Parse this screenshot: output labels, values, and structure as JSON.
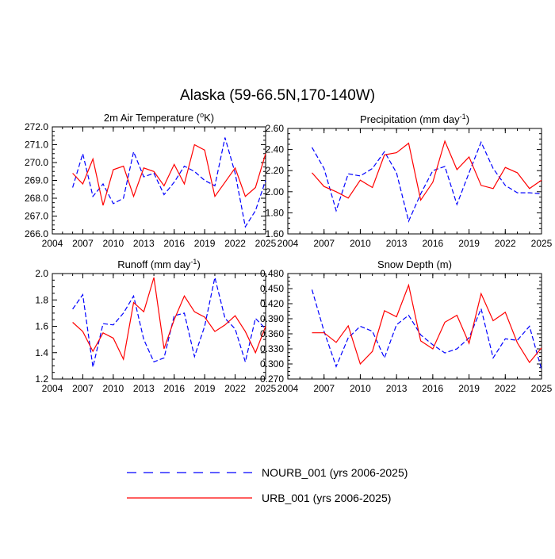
{
  "title": "Alaska (59-66.5N,170-140W)",
  "colors": {
    "nourb": "#0000ff",
    "urb": "#ff0000",
    "axis": "#000000"
  },
  "legend": [
    {
      "key": "nourb",
      "label": "NOURB_001 (yrs 2006-2025)",
      "style": "dashed"
    },
    {
      "key": "urb",
      "label": "URB_001 (yrs 2006-2025)",
      "style": "solid"
    }
  ],
  "chart_data": [
    {
      "id": "temp",
      "type": "line",
      "title": "2m Air Temperature (°K)",
      "title_main": "2m Air Temperature (",
      "title_sup": "o",
      "title_tail": "K)",
      "xlim": [
        2004,
        2025
      ],
      "xticks": [
        "2004",
        "2007",
        "2010",
        "2013",
        "2016",
        "2019",
        "2022",
        "2025"
      ],
      "ylim": [
        266,
        272
      ],
      "yticks": [
        "266.0",
        "267.0",
        "268.0",
        "269.0",
        "270.0",
        "271.0",
        "272.0"
      ],
      "x": [
        2006,
        2007,
        2008,
        2009,
        2010,
        2011,
        2012,
        2013,
        2014,
        2015,
        2016,
        2017,
        2018,
        2019,
        2020,
        2021,
        2022,
        2023,
        2024,
        2025
      ],
      "series": [
        {
          "name": "NOURB_001",
          "key": "nourb",
          "values": [
            268.6,
            270.5,
            268.1,
            268.8,
            267.7,
            268.0,
            270.6,
            269.2,
            269.4,
            268.2,
            268.9,
            269.8,
            269.5,
            269.0,
            268.7,
            271.4,
            269.4,
            266.4,
            267.3,
            269.0
          ]
        },
        {
          "name": "URB_001",
          "key": "urb",
          "values": [
            269.4,
            268.8,
            270.2,
            267.6,
            269.6,
            269.8,
            268.1,
            269.7,
            269.5,
            268.7,
            269.9,
            268.8,
            271.0,
            270.7,
            268.1,
            268.9,
            269.7,
            268.1,
            268.6,
            270.5
          ]
        }
      ]
    },
    {
      "id": "precip",
      "type": "line",
      "title": "Precipitation (mm day-1)",
      "title_main": "Precipitation (mm day",
      "title_sup": "-1",
      "title_tail": ")",
      "xlim": [
        2004,
        2025
      ],
      "xticks": [
        "2004",
        "2007",
        "2010",
        "2013",
        "2016",
        "2019",
        "2022",
        "2025"
      ],
      "ylim": [
        1.6,
        2.6
      ],
      "yticks": [
        "1.60",
        "1.80",
        "2.00",
        "2.20",
        "2.40",
        "2.60"
      ],
      "x": [
        2006,
        2007,
        2008,
        2009,
        2010,
        2011,
        2012,
        2013,
        2014,
        2015,
        2016,
        2017,
        2018,
        2019,
        2020,
        2021,
        2022,
        2023,
        2024,
        2025
      ],
      "series": [
        {
          "name": "NOURB_001",
          "key": "nourb",
          "values": [
            2.42,
            2.22,
            1.82,
            2.17,
            2.15,
            2.22,
            2.38,
            2.18,
            1.72,
            1.98,
            2.2,
            2.24,
            1.88,
            2.18,
            2.47,
            2.22,
            2.06,
            1.99,
            1.99,
            1.98
          ]
        },
        {
          "name": "URB_001",
          "key": "urb",
          "values": [
            2.18,
            2.05,
            2.0,
            1.94,
            2.11,
            2.04,
            2.35,
            2.37,
            2.46,
            1.92,
            2.09,
            2.48,
            2.21,
            2.33,
            2.06,
            2.03,
            2.23,
            2.18,
            2.03,
            2.11
          ]
        }
      ]
    },
    {
      "id": "runoff",
      "type": "line",
      "title": "Runoff (mm day-1)",
      "title_main": "Runoff (mm day",
      "title_sup": "-1",
      "title_tail": ")",
      "xlim": [
        2004,
        2025
      ],
      "xticks": [
        "2004",
        "2007",
        "2010",
        "2013",
        "2016",
        "2019",
        "2022",
        "2025"
      ],
      "ylim": [
        1.2,
        2.0
      ],
      "yticks": [
        "1.2",
        "1.4",
        "1.6",
        "1.8",
        "2.0"
      ],
      "x": [
        2006,
        2007,
        2008,
        2009,
        2010,
        2011,
        2012,
        2013,
        2014,
        2015,
        2016,
        2017,
        2018,
        2019,
        2020,
        2021,
        2022,
        2023,
        2024,
        2025
      ],
      "series": [
        {
          "name": "NOURB_001",
          "key": "nourb",
          "values": [
            1.73,
            1.84,
            1.29,
            1.62,
            1.61,
            1.7,
            1.83,
            1.5,
            1.33,
            1.36,
            1.68,
            1.7,
            1.37,
            1.6,
            1.97,
            1.66,
            1.58,
            1.33,
            1.66,
            1.58
          ]
        },
        {
          "name": "URB_001",
          "key": "urb",
          "values": [
            1.63,
            1.56,
            1.41,
            1.55,
            1.51,
            1.35,
            1.78,
            1.71,
            1.97,
            1.43,
            1.65,
            1.83,
            1.71,
            1.67,
            1.56,
            1.61,
            1.68,
            1.56,
            1.4,
            1.6
          ]
        }
      ]
    },
    {
      "id": "snow",
      "type": "line",
      "title": "Snow Depth (m)",
      "title_main": "Snow Depth (m)",
      "title_sup": "",
      "title_tail": "",
      "xlim": [
        2004,
        2025
      ],
      "xticks": [
        "2004",
        "2007",
        "2010",
        "2013",
        "2016",
        "2019",
        "2022",
        "2025"
      ],
      "ylim": [
        0.27,
        0.48
      ],
      "yticks": [
        "0.270",
        "0.300",
        "0.330",
        "0.360",
        "0.390",
        "0.420",
        "0.450",
        "0.480"
      ],
      "x": [
        2006,
        2007,
        2008,
        2009,
        2010,
        2011,
        2012,
        2013,
        2014,
        2015,
        2016,
        2017,
        2018,
        2019,
        2020,
        2021,
        2022,
        2023,
        2024,
        2025
      ],
      "series": [
        {
          "name": "NOURB_001",
          "key": "nourb",
          "values": [
            0.448,
            0.365,
            0.295,
            0.352,
            0.375,
            0.365,
            0.312,
            0.378,
            0.397,
            0.358,
            0.338,
            0.322,
            0.33,
            0.352,
            0.41,
            0.312,
            0.35,
            0.347,
            0.375,
            0.289
          ]
        },
        {
          "name": "URB_001",
          "key": "urb",
          "values": [
            0.362,
            0.362,
            0.343,
            0.376,
            0.3,
            0.325,
            0.406,
            0.394,
            0.457,
            0.346,
            0.33,
            0.383,
            0.397,
            0.341,
            0.44,
            0.386,
            0.403,
            0.342,
            0.303,
            0.332
          ]
        }
      ]
    }
  ]
}
